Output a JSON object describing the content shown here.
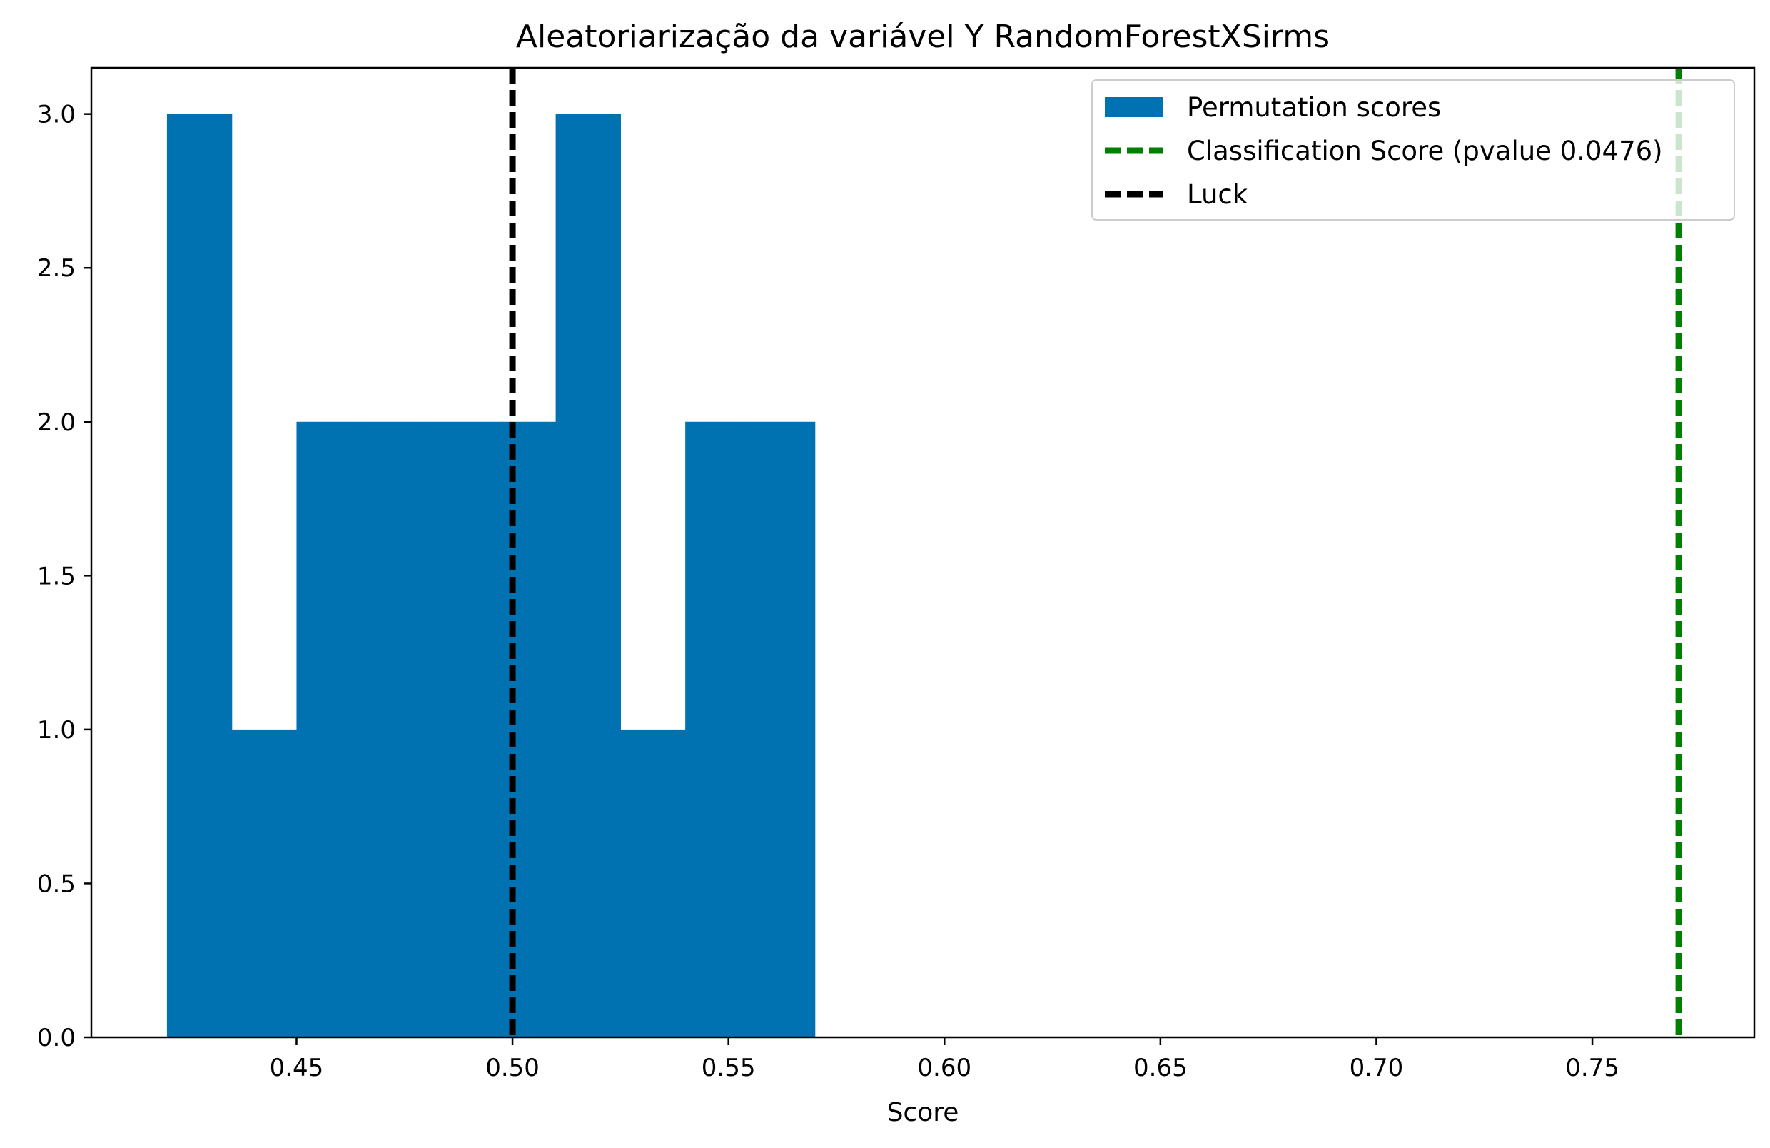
{
  "chart_data": {
    "type": "histogram",
    "title": "Aleatoriarização da variável Y RandomForestXSirms",
    "xlabel": "Score",
    "ylabel": "",
    "xlim": [
      0.4025,
      0.7875
    ],
    "ylim": [
      0,
      3.15
    ],
    "x_ticks": [
      0.45,
      0.5,
      0.55,
      0.6,
      0.65,
      0.7,
      0.75
    ],
    "x_tick_labels": [
      "0.45",
      "0.50",
      "0.55",
      "0.60",
      "0.65",
      "0.70",
      "0.75"
    ],
    "y_ticks": [
      0.0,
      0.5,
      1.0,
      1.5,
      2.0,
      2.5,
      3.0
    ],
    "y_tick_labels": [
      "0.0",
      "0.5",
      "1.0",
      "1.5",
      "2.0",
      "2.5",
      "3.0"
    ],
    "grid": false,
    "legend_position": "top-right",
    "histogram": {
      "name": "Permutation scores",
      "color": "#0072B2",
      "bins": [
        {
          "start": 0.42,
          "end": 0.435,
          "count": 3
        },
        {
          "start": 0.435,
          "end": 0.45,
          "count": 1
        },
        {
          "start": 0.45,
          "end": 0.465,
          "count": 2
        },
        {
          "start": 0.465,
          "end": 0.48,
          "count": 2
        },
        {
          "start": 0.48,
          "end": 0.495,
          "count": 2
        },
        {
          "start": 0.495,
          "end": 0.51,
          "count": 2
        },
        {
          "start": 0.51,
          "end": 0.525,
          "count": 3
        },
        {
          "start": 0.525,
          "end": 0.54,
          "count": 1
        },
        {
          "start": 0.54,
          "end": 0.555,
          "count": 2
        },
        {
          "start": 0.555,
          "end": 0.57,
          "count": 2
        }
      ]
    },
    "vlines": [
      {
        "name": "Classification Score (pvalue 0.0476)",
        "x": 0.77,
        "color": "#008000",
        "style": "dashed"
      },
      {
        "name": "Luck",
        "x": 0.5,
        "color": "#000000",
        "style": "dashed"
      }
    ],
    "legend": [
      {
        "label": "Permutation scores",
        "kind": "patch",
        "color": "#0072B2"
      },
      {
        "label": "Classification Score (pvalue 0.0476)",
        "kind": "dashed-line",
        "color": "#008000"
      },
      {
        "label": "Luck",
        "kind": "dashed-line",
        "color": "#000000"
      }
    ]
  }
}
